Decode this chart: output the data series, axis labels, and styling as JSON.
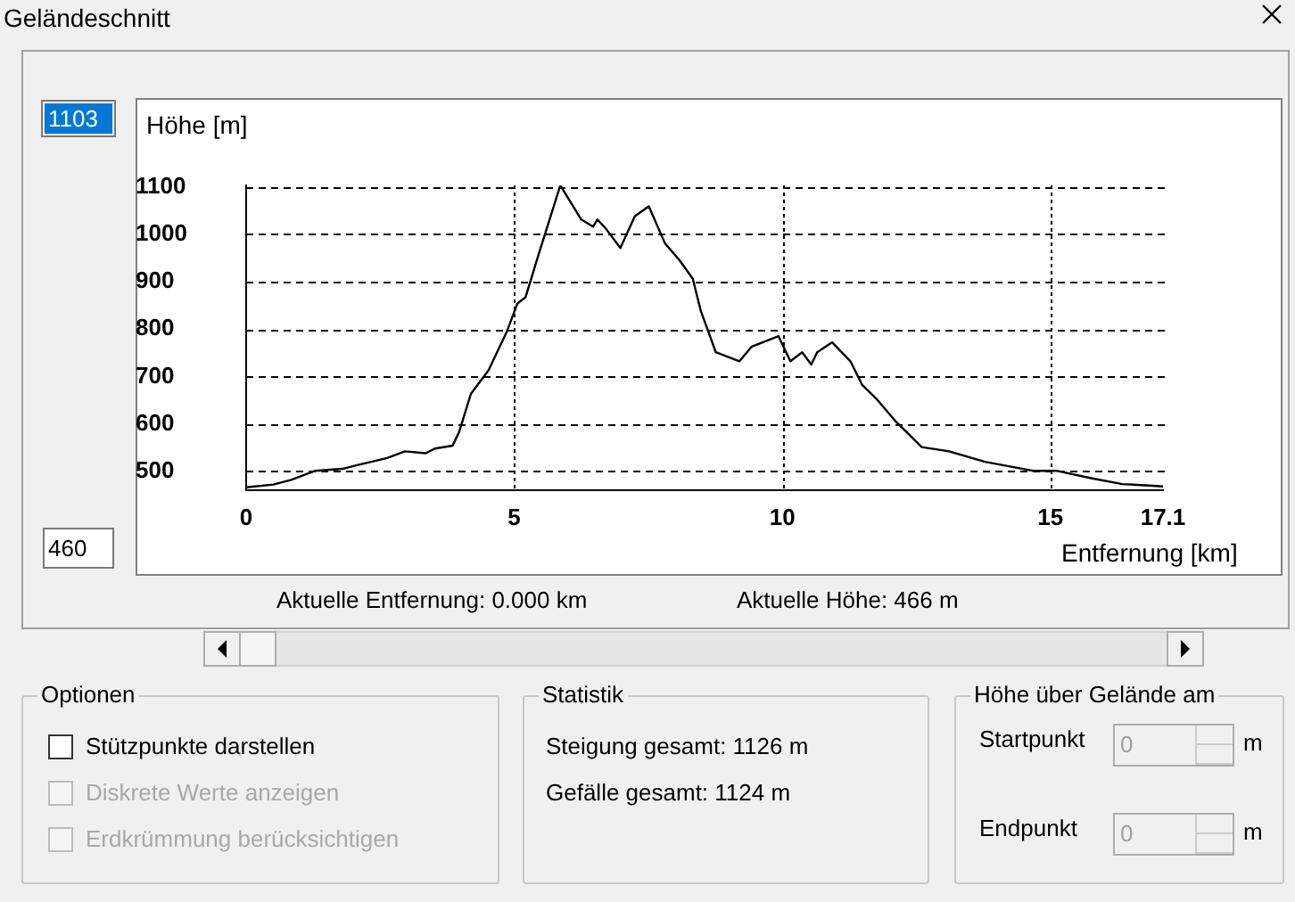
{
  "chart_data": {
    "type": "line",
    "title": "Geländeschnitt",
    "xlabel": "Entfernung [km]",
    "ylabel": "Höhe [m]",
    "x": [
      0,
      0.51,
      0.84,
      1.29,
      1.79,
      2.07,
      2.63,
      2.96,
      3.35,
      3.52,
      3.85,
      3.97,
      4.19,
      4.52,
      4.86,
      5.06,
      5.21,
      5.47,
      5.86,
      6.25,
      6.47,
      6.55,
      6.7,
      6.98,
      7.25,
      7.51,
      7.81,
      8.09,
      8.33,
      8.48,
      8.76,
      9.2,
      9.43,
      9.93,
      10.15,
      10.37,
      10.54,
      10.65,
      10.93,
      11.27,
      11.49,
      11.77,
      12.1,
      12.6,
      13.11,
      13.78,
      14.67,
      15.11,
      15.78,
      16.34,
      16.84,
      17.1
    ],
    "series": [
      {
        "color": "#000000",
        "values": [
          466,
          472,
          482,
          501,
          505,
          513,
          528,
          542,
          538,
          548,
          554,
          582,
          663,
          713,
          794,
          854,
          867,
          963,
          1103,
          1031,
          1016,
          1031,
          1013,
          971,
          1038,
          1059,
          981,
          944,
          906,
          838,
          751,
          732,
          763,
          785,
          732,
          751,
          725,
          751,
          772,
          732,
          682,
          651,
          607,
          551,
          542,
          520,
          501,
          501,
          485,
          473,
          470,
          468
        ]
      }
    ],
    "xlim": [
      0,
      17.1
    ],
    "xticks": [
      0,
      5,
      10,
      15,
      17.1
    ],
    "ylim": [
      460,
      1103
    ],
    "yticks": [
      500,
      600,
      700,
      800,
      900,
      1000,
      1100
    ],
    "grid": true,
    "legend": false,
    "marker": "none",
    "line_style": "solid",
    "annotations": [
      "Aktuelle Entfernung: 0.000 km",
      "Aktuelle Höhe: 466 m",
      "Optionen",
      "Stützpunkte darstellen",
      "Diskrete Werte anzeigen",
      "Erdkrümmung berücksichtigen",
      "Statistik",
      "Steigung gesamt: 1126 m",
      "Gefälle gesamt: 1124 m",
      "Höhe über Gelände am",
      "Startpunkt",
      "0",
      "m",
      "Endpunkt",
      "0",
      "m",
      "1103",
      "460"
    ]
  }
}
